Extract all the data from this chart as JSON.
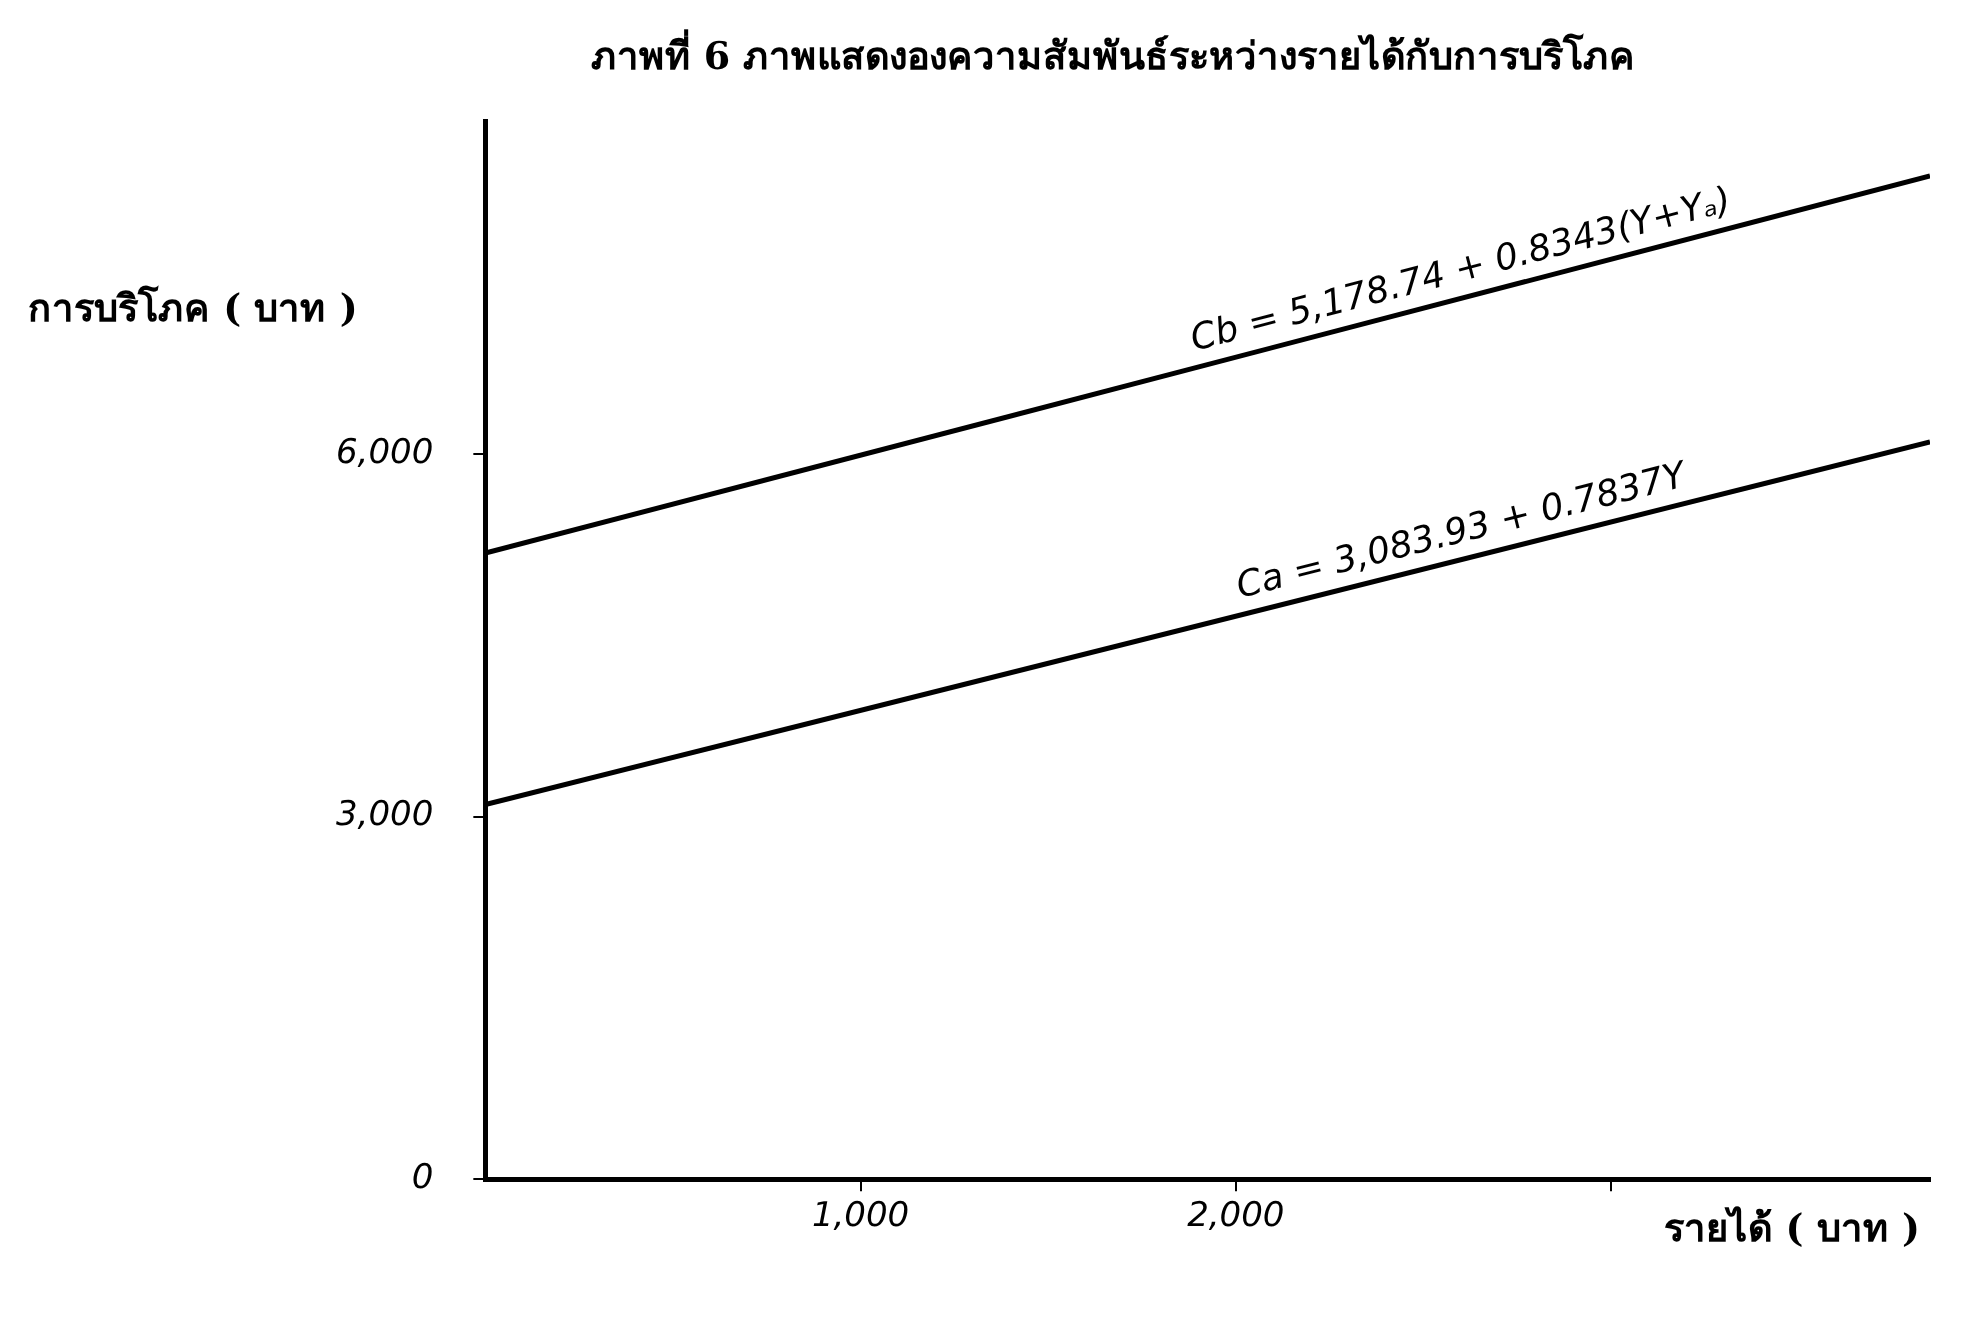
{
  "chart_data": {
    "type": "line",
    "title": "ภาพที่ 6 ภาพแสดงองความสัมพันธ์ระหว่างรายได้กับการบริโภค",
    "xlabel": "รายได้ ( บาท )",
    "ylabel": "การบริโภค ( บาท )",
    "x": [
      0,
      3850
    ],
    "series": [
      {
        "name": "Cb = 5,178.74 + 0.8343(Y+Yₐ)",
        "color": "#000000",
        "values": [
          5180,
          8300
        ]
      },
      {
        "name": "Ca = 3,083.93 + 0.7837Y",
        "color": "#000000",
        "values": [
          3100,
          6100
        ]
      }
    ],
    "xlim": [
      0,
      3850
    ],
    "xticks": [
      {
        "value": 1000,
        "label": "1,000"
      },
      {
        "value": 2000,
        "label": "2,000"
      },
      {
        "value": 3000,
        "label": null
      }
    ],
    "ylim": [
      0,
      8750
    ],
    "yticks": [
      {
        "value": 0,
        "label": "0"
      },
      {
        "value": 3000,
        "label": "3,000"
      },
      {
        "value": 6000,
        "label": "6,000"
      }
    ],
    "grid": false,
    "legend": false,
    "marker": "none",
    "line_style": "solid"
  }
}
